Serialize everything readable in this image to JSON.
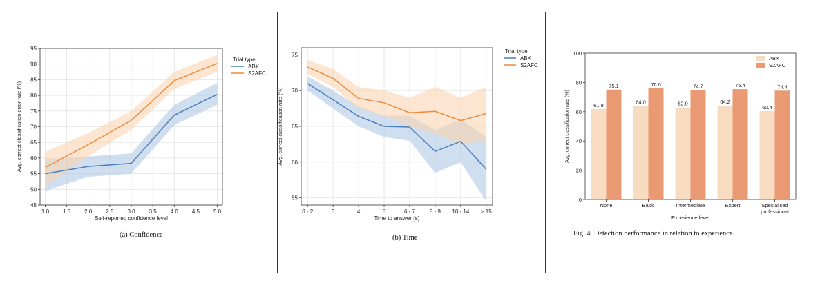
{
  "colors": {
    "abx": "#4a7ebb",
    "s2afc": "#ee8a3c",
    "abx_band": "#aac4e3",
    "s2afc_band": "#fbd2ab",
    "abx_bar": "#f8dcc1",
    "s2afc_bar": "#e99a73",
    "grid": "#e3e3e3"
  },
  "captions": {
    "a": "(a)  Confidence",
    "b": "(b)  Time",
    "fig4": "Fig. 4.   Detection performance in relation to experience."
  },
  "chart_data": [
    {
      "id": "a",
      "type": "line",
      "xlabel": "Self-reported confidence level",
      "ylabel": "Avg. correct classification error rate (%)",
      "x": [
        1.0,
        2.0,
        3.0,
        4.0,
        5.0
      ],
      "xticks": [
        "1.0",
        "1.5",
        "2.0",
        "2.5",
        "3.0",
        "3.5",
        "4.0",
        "4.5",
        "5.0"
      ],
      "xlim": [
        0.88,
        5.12
      ],
      "ylim": [
        45,
        95
      ],
      "yticks": [
        45,
        50,
        55,
        60,
        65,
        70,
        75,
        80,
        85,
        90,
        95
      ],
      "grid": true,
      "legend_title": "Trial type",
      "legend_position": "outside-right",
      "series": [
        {
          "name": "ABX",
          "values": [
            55.0,
            57.3,
            58.3,
            73.7,
            80.3
          ],
          "lower": [
            49.5,
            54.0,
            55.0,
            70.5,
            77.0
          ],
          "upper": [
            59.5,
            60.5,
            61.5,
            77.0,
            84.0
          ]
        },
        {
          "name": "S2AFC",
          "values": [
            57.0,
            64.3,
            72.0,
            84.7,
            90.2
          ],
          "lower": [
            51.0,
            60.5,
            69.0,
            82.0,
            87.5
          ],
          "upper": [
            62.0,
            68.0,
            75.0,
            87.5,
            93.0
          ]
        }
      ]
    },
    {
      "id": "b",
      "type": "line",
      "xlabel": "Time to answer (s)",
      "ylabel": "Avg. correct classification rate (%)",
      "categories": [
        "0 - 2",
        "3",
        "4",
        "5",
        "6 - 7",
        "8 - 9",
        "10 - 14",
        "> 15"
      ],
      "xlim": [
        -0.25,
        7.25
      ],
      "ylim": [
        54,
        76
      ],
      "yticks": [
        55,
        60,
        65,
        70,
        75
      ],
      "grid": true,
      "legend_title": "Trial type",
      "legend_position": "outside-right",
      "series": [
        {
          "name": "ABX",
          "values": [
            71.0,
            68.7,
            66.4,
            65.0,
            64.9,
            61.5,
            62.9,
            59.0
          ],
          "lower": [
            70.0,
            67.5,
            65.0,
            63.5,
            63.0,
            58.5,
            60.0,
            54.5
          ],
          "upper": [
            72.0,
            70.0,
            67.8,
            66.5,
            66.5,
            64.5,
            66.0,
            63.5
          ]
        },
        {
          "name": "S2AFC",
          "values": [
            73.3,
            71.7,
            68.9,
            68.3,
            66.9,
            67.1,
            65.8,
            66.8
          ],
          "lower": [
            72.3,
            70.5,
            67.5,
            66.5,
            65.0,
            64.0,
            62.5,
            63.0
          ],
          "upper": [
            74.3,
            73.0,
            70.5,
            70.0,
            69.0,
            70.5,
            69.0,
            70.5
          ]
        }
      ]
    },
    {
      "id": "fig4",
      "type": "bar",
      "xlabel": "Experience level",
      "ylabel": "Avg. correct classification rate (%)",
      "categories": [
        "None",
        "Basic",
        "Intermediate",
        "Expert",
        "Specialised\nprofessional"
      ],
      "ylim": [
        0,
        100
      ],
      "yticks": [
        0,
        20,
        40,
        60,
        80,
        100
      ],
      "grid": false,
      "legend_position": "upper-right",
      "series": [
        {
          "name": "ABX",
          "values": [
            61.8,
            64.0,
            62.9,
            64.2,
            60.4
          ],
          "labels": [
            "61.8",
            "64.0",
            "62.9",
            "64.2",
            "60.4"
          ]
        },
        {
          "name": "S2AFC",
          "values": [
            75.1,
            76.0,
            74.7,
            75.4,
            74.4
          ],
          "labels": [
            "75.1",
            "76.0",
            "74.7",
            "75.4",
            "74.4"
          ]
        }
      ]
    }
  ]
}
